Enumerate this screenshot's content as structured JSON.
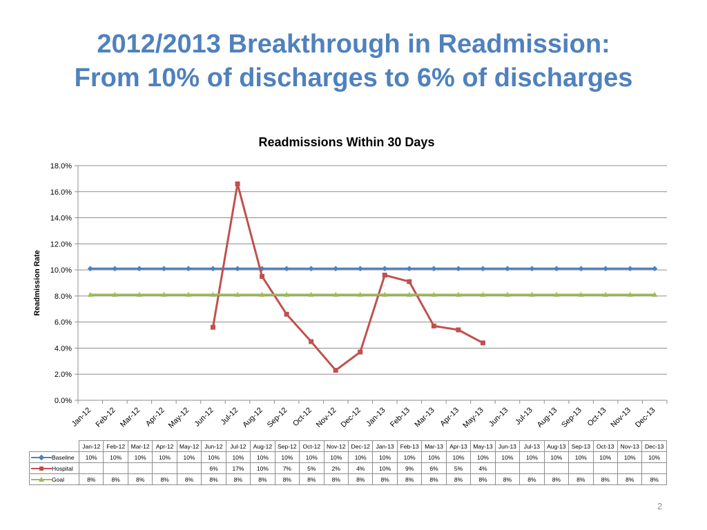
{
  "slide": {
    "title_line1": "2012/2013 Breakthrough in Readmission:",
    "title_line2": "From 10% of discharges to 6% of discharges",
    "page_number": "2"
  },
  "colors": {
    "title": "#4f81bd",
    "baseline": "#4f81bd",
    "hospital": "#c0504d",
    "goal": "#9bbb59"
  },
  "chart_data": {
    "type": "line",
    "title": "Readmissions Within 30 Days",
    "ylabel": "Readmission Rate",
    "xlabel": "",
    "ylim": [
      0,
      18
    ],
    "yticks": [
      "0.0%",
      "2.0%",
      "4.0%",
      "6.0%",
      "8.0%",
      "10.0%",
      "12.0%",
      "14.0%",
      "16.0%",
      "18.0%"
    ],
    "grid": true,
    "legend": "data table",
    "categories": [
      "Jan-12",
      "Feb-12",
      "Mar-12",
      "Apr-12",
      "May-12",
      "Jun-12",
      "Jul-12",
      "Aug-12",
      "Sep-12",
      "Oct-12",
      "Nov-12",
      "Dec-12",
      "Jan-13",
      "Feb-13",
      "Mar-13",
      "Apr-13",
      "May-13",
      "Jun-13",
      "Jul-13",
      "Aug-13",
      "Sep-13",
      "Oct-13",
      "Nov-13",
      "Dec-13"
    ],
    "series": [
      {
        "name": "Baseline",
        "marker": "diamond",
        "values": [
          10.1,
          10.1,
          10.1,
          10.1,
          10.1,
          10.1,
          10.1,
          10.1,
          10.1,
          10.1,
          10.1,
          10.1,
          10.1,
          10.1,
          10.1,
          10.1,
          10.1,
          10.1,
          10.1,
          10.1,
          10.1,
          10.1,
          10.1,
          10.1
        ],
        "labels": [
          "10%",
          "10%",
          "10%",
          "10%",
          "10%",
          "10%",
          "10%",
          "10%",
          "10%",
          "10%",
          "10%",
          "10%",
          "10%",
          "10%",
          "10%",
          "10%",
          "10%",
          "10%",
          "10%",
          "10%",
          "10%",
          "10%",
          "10%",
          "10%"
        ]
      },
      {
        "name": "Hospital",
        "marker": "square",
        "values": [
          null,
          null,
          null,
          null,
          null,
          5.6,
          16.6,
          9.5,
          6.6,
          4.5,
          2.3,
          3.7,
          9.6,
          9.1,
          5.7,
          5.4,
          4.4,
          null,
          null,
          null,
          null,
          null,
          null,
          null
        ],
        "labels": [
          "",
          "",
          "",
          "",
          "",
          "6%",
          "17%",
          "10%",
          "7%",
          "5%",
          "2%",
          "4%",
          "10%",
          "9%",
          "6%",
          "5%",
          "4%",
          "",
          "",
          "",
          "",
          "",
          "",
          ""
        ]
      },
      {
        "name": "Goal",
        "marker": "triangle",
        "values": [
          8.1,
          8.1,
          8.1,
          8.1,
          8.1,
          8.1,
          8.1,
          8.1,
          8.1,
          8.1,
          8.1,
          8.1,
          8.1,
          8.1,
          8.1,
          8.1,
          8.1,
          8.1,
          8.1,
          8.1,
          8.1,
          8.1,
          8.1,
          8.1
        ],
        "labels": [
          "8%",
          "8%",
          "8%",
          "8%",
          "8%",
          "8%",
          "8%",
          "8%",
          "8%",
          "8%",
          "8%",
          "8%",
          "8%",
          "8%",
          "8%",
          "8%",
          "8%",
          "8%",
          "8%",
          "8%",
          "8%",
          "8%",
          "8%",
          "8%"
        ]
      }
    ]
  }
}
